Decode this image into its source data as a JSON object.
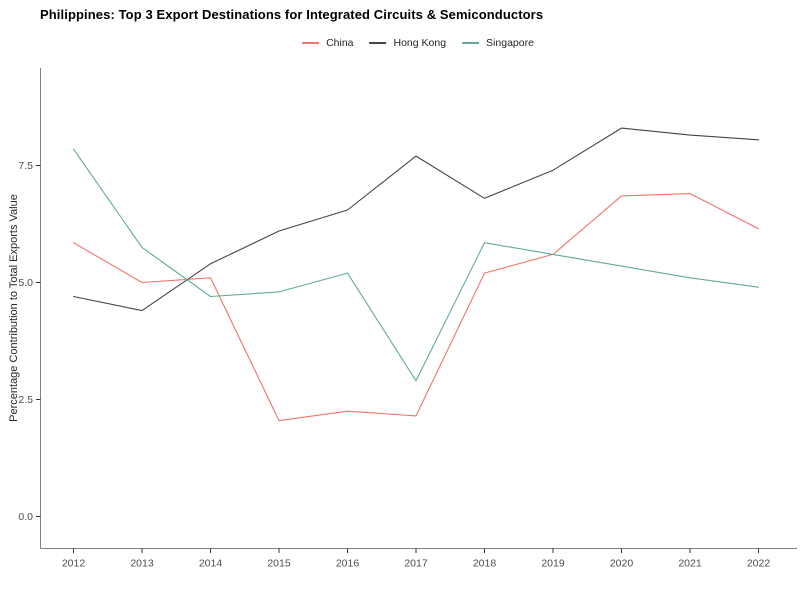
{
  "page": {
    "title": "Philippines: Top 3 Export Destinations for Integrated Circuits & Semiconductors"
  },
  "axes": {
    "y_label": "Percentage Contribution to Total Exports Value",
    "y_ticks": [
      {
        "value": 0.0,
        "label": "0.0"
      },
      {
        "value": 2.5,
        "label": "2.5"
      },
      {
        "value": 5.0,
        "label": "5.0"
      },
      {
        "value": 7.5,
        "label": "7.5"
      }
    ],
    "tick_color": "#333333",
    "axis_line_color": "#7f7f7f",
    "tick_label_color": "#4d4d4d"
  },
  "chart_data": {
    "type": "line",
    "title": "Philippines: Top 3 Export Destinations for Integrated Circuits & Semiconductors",
    "xlabel": "",
    "ylabel": "Percentage Contribution to Total Exports Value",
    "x": [
      2012,
      2013,
      2014,
      2015,
      2016,
      2017,
      2018,
      2019,
      2020,
      2021,
      2022
    ],
    "series": [
      {
        "name": "China",
        "color": "#f0756d",
        "values": [
          5.85,
          5.0,
          5.1,
          2.05,
          2.25,
          2.15,
          5.2,
          5.6,
          6.85,
          6.9,
          6.15
        ]
      },
      {
        "name": "Hong Kong",
        "color": "#454545",
        "values": [
          4.7,
          4.4,
          5.4,
          6.1,
          6.55,
          7.7,
          6.8,
          7.4,
          8.3,
          8.15,
          8.05
        ]
      },
      {
        "name": "Singapore",
        "color": "#62a99d",
        "values": [
          7.85,
          5.75,
          4.7,
          4.8,
          5.2,
          2.9,
          5.85,
          5.6,
          5.35,
          5.1,
          4.9
        ]
      }
    ],
    "ylim": [
      0,
      9.6
    ],
    "grid": false,
    "legend_position": "top-center"
  }
}
